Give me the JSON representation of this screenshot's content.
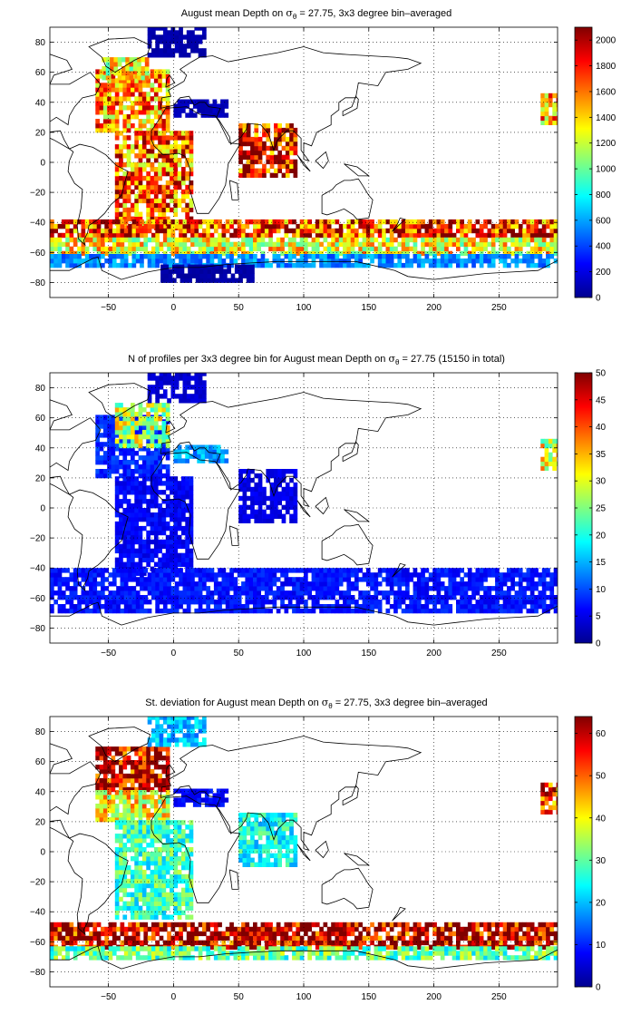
{
  "chart_data": [
    {
      "type": "heatmap",
      "title": {
        "pre": "August mean Depth on ",
        "sym": "σ",
        "sub": "θ",
        "post": " = 27.75, 3x3 degree bin–averaged"
      },
      "xticks": [
        -50,
        0,
        50,
        100,
        150,
        200,
        250
      ],
      "yticks": [
        80,
        60,
        40,
        20,
        0,
        -20,
        -40,
        -60,
        -80
      ],
      "xlim": [
        -95,
        295
      ],
      "ylim": [
        -90,
        90
      ],
      "colorbar": {
        "min": 0,
        "max": 2100,
        "ticks": [
          0,
          200,
          400,
          600,
          800,
          1000,
          1200,
          1400,
          1600,
          1800,
          2000
        ]
      },
      "regions": [
        {
          "lon": [
            -60,
            -5
          ],
          "lat": [
            20,
            60
          ],
          "value": 1550
        },
        {
          "lon": [
            -55,
            -20
          ],
          "lat": [
            55,
            70
          ],
          "value": 1300
        },
        {
          "lon": [
            -45,
            15
          ],
          "lat": [
            -45,
            20
          ],
          "value": 1650
        },
        {
          "lon": [
            50,
            95
          ],
          "lat": [
            -10,
            25
          ],
          "value": 1900
        },
        {
          "lon": [
            -95,
            295
          ],
          "lat": [
            -50,
            -40
          ],
          "value": 1750
        },
        {
          "lon": [
            -95,
            295
          ],
          "lat": [
            -62,
            -50
          ],
          "value": 1300
        },
        {
          "lon": [
            -95,
            295
          ],
          "lat": [
            -70,
            -62
          ],
          "value": 550
        },
        {
          "lon": [
            -10,
            60
          ],
          "lat": [
            -80,
            -70
          ],
          "value": 80
        },
        {
          "lon": [
            -20,
            25
          ],
          "lat": [
            70,
            90
          ],
          "value": 90
        },
        {
          "lon": [
            0,
            40
          ],
          "lat": [
            30,
            42
          ],
          "value": 120
        },
        {
          "lon": [
            282,
            295
          ],
          "lat": [
            25,
            45
          ],
          "value": 1500
        }
      ]
    },
    {
      "type": "heatmap",
      "title": {
        "pre": "N of profiles per 3x3 degree bin for August mean Depth on ",
        "sym": "σ",
        "sub": "θ",
        "post": " = 27.75 (15150 in total)"
      },
      "xticks": [
        -50,
        0,
        50,
        100,
        150,
        200,
        250
      ],
      "yticks": [
        80,
        60,
        40,
        20,
        0,
        -20,
        -40,
        -60,
        -80
      ],
      "xlim": [
        -95,
        295
      ],
      "ylim": [
        -90,
        90
      ],
      "colorbar": {
        "min": 0,
        "max": 50,
        "ticks": [
          0,
          5,
          10,
          15,
          20,
          25,
          30,
          35,
          40,
          45,
          50
        ]
      },
      "regions": [
        {
          "lon": [
            -60,
            -5
          ],
          "lat": [
            20,
            60
          ],
          "value": 8
        },
        {
          "lon": [
            -45,
            -5
          ],
          "lat": [
            40,
            70
          ],
          "value": 28
        },
        {
          "lon": [
            -45,
            15
          ],
          "lat": [
            -45,
            20
          ],
          "value": 6
        },
        {
          "lon": [
            50,
            95
          ],
          "lat": [
            -10,
            25
          ],
          "value": 5
        },
        {
          "lon": [
            -95,
            295
          ],
          "lat": [
            -70,
            -40
          ],
          "value": 7
        },
        {
          "lon": [
            -20,
            25
          ],
          "lat": [
            70,
            90
          ],
          "value": 4
        },
        {
          "lon": [
            0,
            40
          ],
          "lat": [
            30,
            42
          ],
          "value": 14
        },
        {
          "lon": [
            282,
            295
          ],
          "lat": [
            25,
            45
          ],
          "value": 30
        }
      ]
    },
    {
      "type": "heatmap",
      "title": {
        "pre": "St. deviation for August mean Depth on ",
        "sym": "σ",
        "sub": "θ",
        "post": " = 27.75, 3x3 degree bin–averaged"
      },
      "xticks": [
        -50,
        0,
        50,
        100,
        150,
        200,
        250
      ],
      "yticks": [
        80,
        60,
        40,
        20,
        0,
        -20,
        -40,
        -60,
        -80
      ],
      "xlim": [
        -95,
        295
      ],
      "ylim": [
        -90,
        90
      ],
      "colorbar": {
        "min": 0,
        "max": 64,
        "ticks": [
          0,
          10,
          20,
          30,
          40,
          50,
          60
        ]
      },
      "regions": [
        {
          "lon": [
            -60,
            -5
          ],
          "lat": [
            40,
            70
          ],
          "value": 62
        },
        {
          "lon": [
            -60,
            -5
          ],
          "lat": [
            20,
            40
          ],
          "value": 40
        },
        {
          "lon": [
            -45,
            15
          ],
          "lat": [
            -45,
            20
          ],
          "value": 28
        },
        {
          "lon": [
            50,
            95
          ],
          "lat": [
            -10,
            25
          ],
          "value": 25
        },
        {
          "lon": [
            -95,
            295
          ],
          "lat": [
            -65,
            -48
          ],
          "value": 62
        },
        {
          "lon": [
            -95,
            295
          ],
          "lat": [
            -72,
            -65
          ],
          "value": 30
        },
        {
          "lon": [
            -20,
            25
          ],
          "lat": [
            70,
            90
          ],
          "value": 20
        },
        {
          "lon": [
            0,
            40
          ],
          "lat": [
            30,
            42
          ],
          "value": 8
        },
        {
          "lon": [
            282,
            295
          ],
          "lat": [
            25,
            45
          ],
          "value": 55
        }
      ]
    }
  ]
}
